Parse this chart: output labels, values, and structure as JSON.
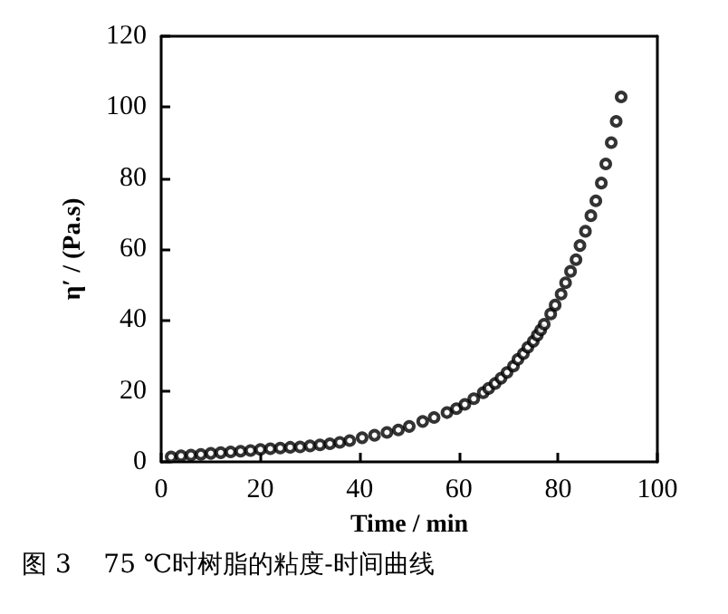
{
  "chart_data": {
    "type": "scatter",
    "xlabel": "Time / min",
    "ylabel": "η′ / (Pa.s)",
    "annotations": [
      "图 3    75 ℃时树脂的粘度-时间曲线"
    ],
    "x": [
      2,
      4,
      6,
      8,
      10,
      12,
      14,
      16,
      18,
      20,
      22,
      24,
      26,
      28,
      30,
      32,
      34,
      36,
      38,
      40.5,
      43,
      45.5,
      47.8,
      50,
      52.7,
      55,
      57.6,
      59.5,
      61.2,
      63,
      64.9,
      66,
      67.3,
      68.5,
      69.7,
      71,
      71.9,
      73,
      73.9,
      75,
      75.8,
      76.5,
      77.2,
      78.5,
      79.4,
      80.6,
      81.5,
      82.5,
      83.6,
      84.4,
      85.5,
      86.6,
      87.6,
      88.7,
      89.6,
      90.7,
      91.7,
      92.7
    ],
    "series": [
      {
        "color": "#000000",
        "values": [
          1.4,
          1.7,
          1.9,
          2.1,
          2.4,
          2.6,
          2.8,
          3,
          3.2,
          3.5,
          3.7,
          3.9,
          4.1,
          4.2,
          4.5,
          4.8,
          5.1,
          5.5,
          6,
          6.8,
          7.5,
          8.3,
          9,
          10,
          11.4,
          12.5,
          13.9,
          15,
          16.2,
          17.8,
          19.5,
          20.7,
          22.1,
          23.6,
          25.2,
          27,
          28.9,
          30.5,
          32.3,
          34,
          35.7,
          37.2,
          38.8,
          41.7,
          44.2,
          47.3,
          50.5,
          53.7,
          57,
          61,
          65,
          69.4,
          73.6,
          78.6,
          84,
          90,
          96,
          102.9
        ]
      }
    ],
    "xlim": [
      0,
      100
    ],
    "xticks": [
      0,
      20,
      40,
      60,
      80,
      100
    ],
    "ylim": [
      0,
      120
    ],
    "yticks": [
      0,
      20,
      40,
      60,
      80,
      100,
      120
    ],
    "marker": "circle"
  }
}
